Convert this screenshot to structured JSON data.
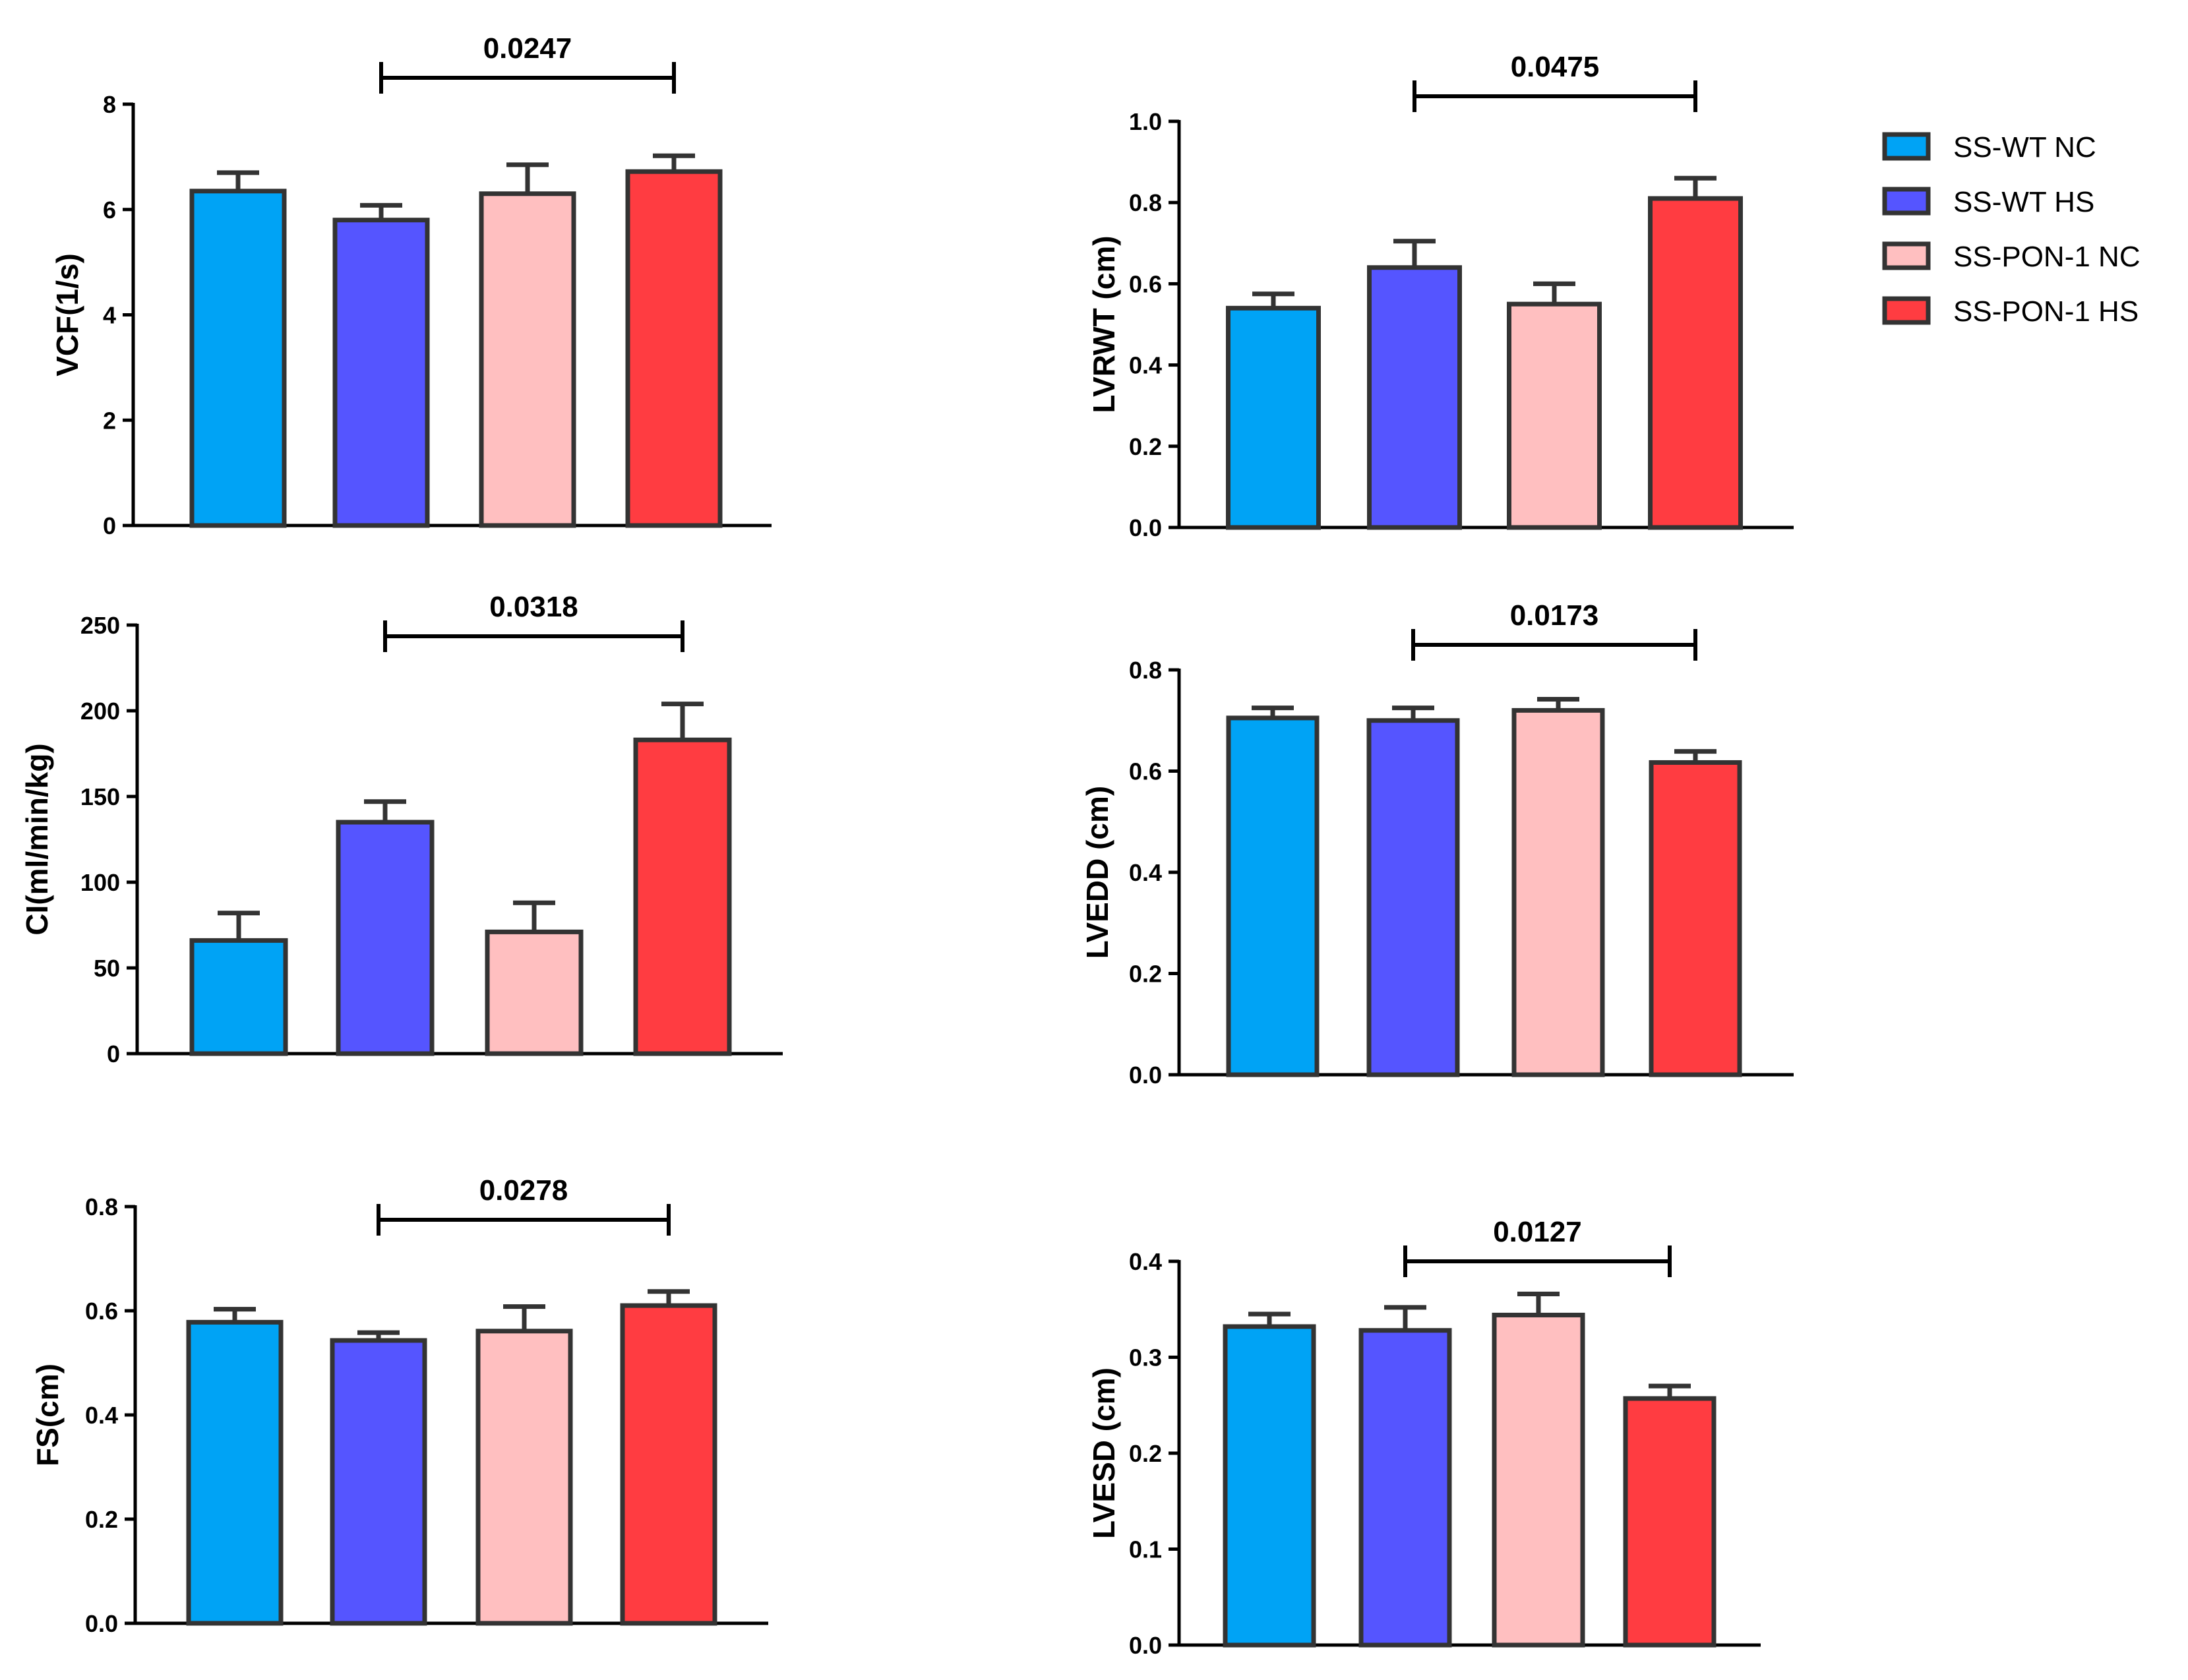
{
  "legend": [
    {
      "label": "SS-WT NC",
      "color": "#00A3F5"
    },
    {
      "label": "SS-WT HS",
      "color": "#5555FF"
    },
    {
      "label": "SS-PON-1 NC",
      "color": "#FFBFC0"
    },
    {
      "label": "SS-PON-1 HS",
      "color": "#FF3C41"
    }
  ],
  "chart_data": [
    {
      "type": "bar",
      "panel": "top-left",
      "ylabel": "VCF(1/s)",
      "categories": [
        "SS-WT NC",
        "SS-WT HS",
        "SS-PON-1 NC",
        "SS-PON-1 HS"
      ],
      "values": [
        6.35,
        5.8,
        6.3,
        6.72
      ],
      "errors": [
        0.35,
        0.28,
        0.55,
        0.3
      ],
      "ylim": [
        0,
        8
      ],
      "yticks": [
        "0",
        "2",
        "4",
        "6",
        "8"
      ],
      "comparison": {
        "between": [
          1,
          3
        ],
        "p": "0.0247"
      }
    },
    {
      "type": "bar",
      "panel": "top-right",
      "ylabel": "LVRWT (cm)",
      "categories": [
        "SS-WT NC",
        "SS-WT HS",
        "SS-PON-1 NC",
        "SS-PON-1 HS"
      ],
      "values": [
        0.54,
        0.64,
        0.55,
        0.81
      ],
      "errors": [
        0.035,
        0.065,
        0.05,
        0.05
      ],
      "ylim": [
        0,
        1.0
      ],
      "yticks": [
        "0.0",
        "0.2",
        "0.4",
        "0.6",
        "0.8",
        "1.0"
      ],
      "comparison": {
        "between": [
          1,
          3
        ],
        "p": "0.0475"
      }
    },
    {
      "type": "bar",
      "panel": "middle-left",
      "ylabel": "CI(ml/min/kg)",
      "categories": [
        "SS-WT NC",
        "SS-WT HS",
        "SS-PON-1 NC",
        "SS-PON-1 HS"
      ],
      "values": [
        66,
        135,
        71,
        183
      ],
      "errors": [
        16,
        12,
        17,
        21
      ],
      "ylim": [
        0,
        250
      ],
      "yticks": [
        "0",
        "50",
        "100",
        "150",
        "200",
        "250"
      ],
      "comparison": {
        "between": [
          1,
          3
        ],
        "p": "0.0318"
      }
    },
    {
      "type": "bar",
      "panel": "middle-right",
      "ylabel": "LVEDD (cm)",
      "categories": [
        "SS-WT NC",
        "SS-WT HS",
        "SS-PON-1 NC",
        "SS-PON-1 HS"
      ],
      "values": [
        0.705,
        0.7,
        0.72,
        0.617
      ],
      "errors": [
        0.02,
        0.025,
        0.022,
        0.022
      ],
      "ylim": [
        0,
        0.8
      ],
      "yticks": [
        "0.0",
        "0.2",
        "0.4",
        "0.6",
        "0.8"
      ],
      "comparison": {
        "between": [
          1,
          3
        ],
        "p": "0.0173"
      }
    },
    {
      "type": "bar",
      "panel": "bottom-left",
      "ylabel": "FS(cm)",
      "categories": [
        "SS-WT NC",
        "SS-WT HS",
        "SS-PON-1 NC",
        "SS-PON-1 HS"
      ],
      "values": [
        0.578,
        0.543,
        0.561,
        0.61
      ],
      "errors": [
        0.025,
        0.015,
        0.047,
        0.027
      ],
      "ylim": [
        0,
        0.8
      ],
      "yticks": [
        "0.0",
        "0.2",
        "0.4",
        "0.6",
        "0.8"
      ],
      "comparison": {
        "between": [
          1,
          3
        ],
        "p": "0.0278"
      }
    },
    {
      "type": "bar",
      "panel": "bottom-right",
      "ylabel": "LVESD (cm)",
      "categories": [
        "SS-WT NC",
        "SS-WT HS",
        "SS-PON-1 NC",
        "SS-PON-1 HS"
      ],
      "values": [
        0.332,
        0.328,
        0.344,
        0.257
      ],
      "errors": [
        0.013,
        0.024,
        0.022,
        0.013
      ],
      "ylim": [
        0,
        0.4
      ],
      "yticks": [
        "0.0",
        "0.1",
        "0.2",
        "0.3",
        "0.4"
      ],
      "comparison": {
        "between": [
          1,
          3
        ],
        "p": "0.0127"
      }
    }
  ]
}
